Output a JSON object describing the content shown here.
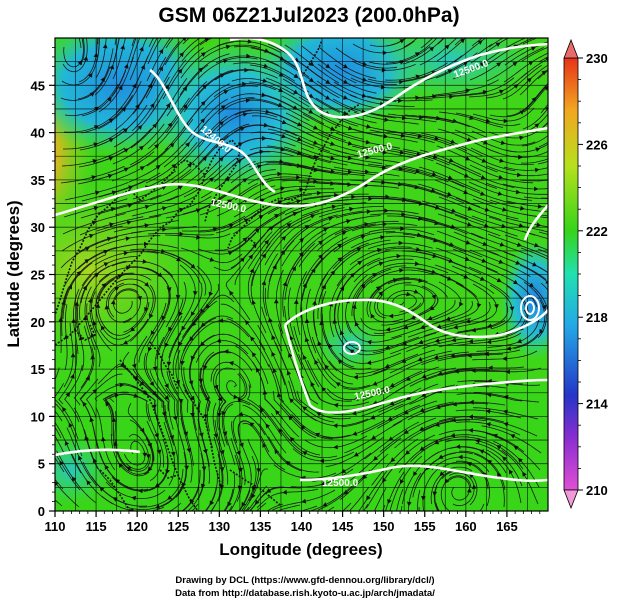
{
  "title": "GSM 06Z21Jul2023 (200.0hPa)",
  "xaxis": {
    "label": "Longitude (degrees)",
    "range": [
      110,
      170
    ],
    "ticks": [
      110,
      115,
      120,
      125,
      130,
      135,
      140,
      145,
      150,
      155,
      160,
      165
    ]
  },
  "yaxis": {
    "label": "Latitude  (degrees)",
    "range": [
      0,
      50
    ],
    "ticks": [
      0,
      5,
      10,
      15,
      20,
      25,
      30,
      35,
      40,
      45
    ]
  },
  "colorbar": {
    "range": [
      210,
      230
    ],
    "ticks": [
      "210",
      "214",
      "218",
      "222",
      "226",
      "230"
    ],
    "colors": [
      "#e04fd4",
      "#2436c8",
      "#23a8e6",
      "#22e0b0",
      "#35d41a",
      "#b6e01e",
      "#f2a620",
      "#e63318"
    ]
  },
  "contour_labels": [
    "12400.0",
    "12500.0",
    "12500.0",
    "12500.0",
    "12500.0",
    "12500.0"
  ],
  "credits": {
    "line1": "Drawing by DCL (https://www.gfd-dennou.org/library/dcl/)",
    "line2": "Data from http://database.rish.kyoto-u.ac.jp/arch/jmadata/"
  },
  "chart_data": {
    "type": "heatmap",
    "variable": "temperature at 200.0hPa with streamlines and geopotential height contours",
    "x_range": [
      110,
      170
    ],
    "y_range": [
      0,
      50
    ],
    "value_range": [
      210,
      230
    ],
    "regions": [
      {
        "lon": 118,
        "lat": 46,
        "value": 218
      },
      {
        "lon": 133,
        "lat": 44,
        "value": 217
      },
      {
        "lon": 145,
        "lat": 46,
        "value": 219
      },
      {
        "lon": 111,
        "lat": 40,
        "value": 227
      },
      {
        "lon": 166,
        "lat": 24,
        "value": 218
      },
      {
        "lon": 150,
        "lat": 30,
        "value": 223
      },
      {
        "lon": 140,
        "lat": 10,
        "value": 222
      }
    ],
    "contours": [
      {
        "value": 12400.0
      },
      {
        "value": 12500.0
      }
    ]
  }
}
